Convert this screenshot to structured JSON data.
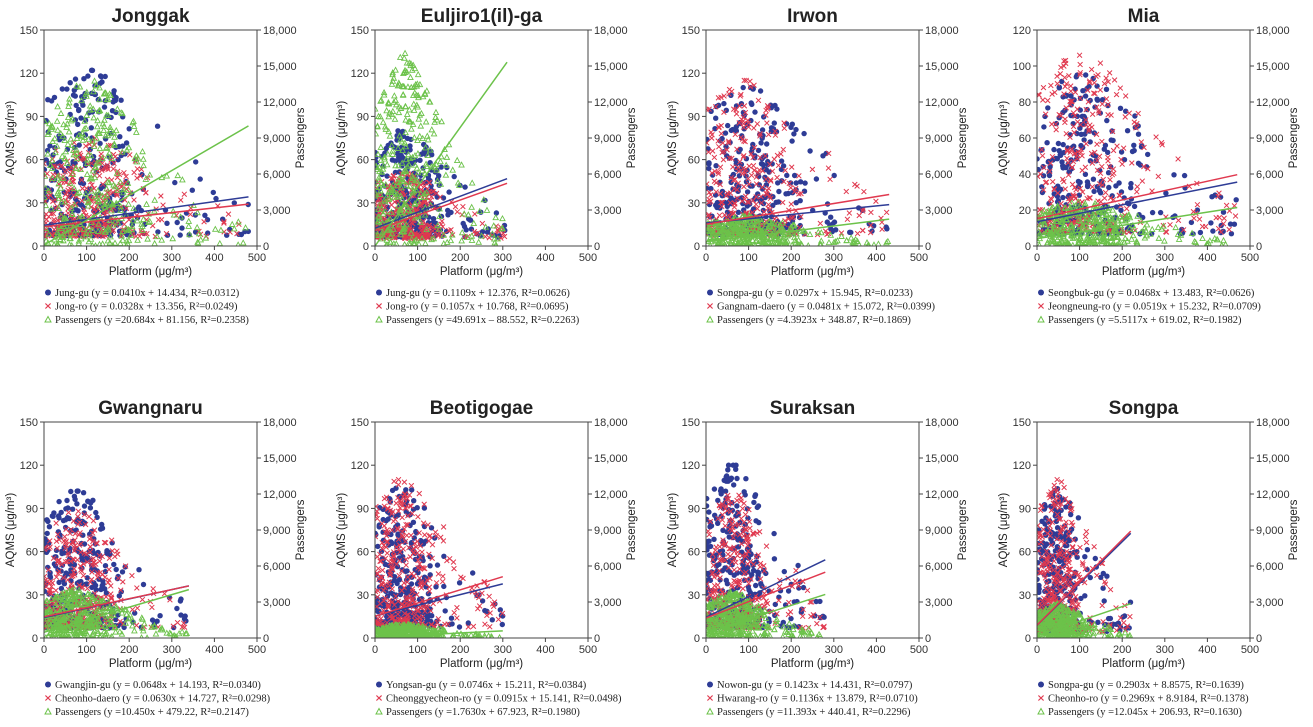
{
  "figure": {
    "left_axis_label": "AQMS (μg/m³)",
    "right_axis_label": "Passengers",
    "x_axis_label": "Platform (μg/m³)"
  },
  "colors": {
    "series1": "#2e3c96",
    "series2": "#e0394f",
    "series3": "#6cc24a"
  },
  "chart_data": [
    {
      "type": "scatter",
      "title": "Jonggak",
      "xlim": [
        0,
        500
      ],
      "ylim": [
        0,
        150
      ],
      "y2lim": [
        0,
        18000
      ],
      "xticks": [
        0,
        100,
        200,
        300,
        400,
        500
      ],
      "yticks": [
        0,
        30,
        60,
        90,
        120,
        150
      ],
      "y2ticks": [
        "0",
        "3,000",
        "6,000",
        "9,000",
        "12,000",
        "15,000",
        "18,000"
      ],
      "series": [
        {
          "name": "Jung-gu",
          "slope": 0.041,
          "intercept": 14.434,
          "legend": "Jung-gu (y = 0.0410x + 14.434, R²=0.0312)"
        },
        {
          "name": "Jong-ro",
          "slope": 0.0328,
          "intercept": 13.356,
          "legend": "Jong-ro (y = 0.0328x + 13.356, R²=0.0249)"
        },
        {
          "name": "Passengers",
          "slope": 20.684,
          "intercept": 81.156,
          "legend": "Passengers (y =20.684x + 81.156, R²=0.2358)"
        }
      ],
      "cloud": {
        "xmax": 480,
        "ymax1": 122,
        "ymax2": 75,
        "pmax": 14500
      }
    },
    {
      "type": "scatter",
      "title": "Euljiro1(il)-ga",
      "xlim": [
        0,
        500
      ],
      "ylim": [
        0,
        150
      ],
      "y2lim": [
        0,
        18000
      ],
      "xticks": [
        0,
        100,
        200,
        300,
        400,
        500
      ],
      "yticks": [
        0,
        30,
        60,
        90,
        120,
        150
      ],
      "y2ticks": [
        "0",
        "3,000",
        "6,000",
        "9,000",
        "12,000",
        "15,000",
        "18,000"
      ],
      "series": [
        {
          "name": "Jung-gu",
          "slope": 0.1109,
          "intercept": 12.376,
          "legend": "Jung-gu (y = 0.1109x + 12.376, R²=0.0626)"
        },
        {
          "name": "Jong-ro",
          "slope": 0.1057,
          "intercept": 10.768,
          "legend": "Jong-ro (y = 0.1057x + 10.768, R²=0.0695)"
        },
        {
          "name": "Passengers",
          "slope": 49.691,
          "intercept": -88.552,
          "legend": "Passengers (y =49.691x – 88.552, R²=0.2263)"
        }
      ],
      "cloud": {
        "xmax": 310,
        "ymax1": 80,
        "ymax2": 50,
        "pmax": 16500
      }
    },
    {
      "type": "scatter",
      "title": "Irwon",
      "xlim": [
        0,
        500
      ],
      "ylim": [
        0,
        150
      ],
      "y2lim": [
        0,
        18000
      ],
      "xticks": [
        0,
        100,
        200,
        300,
        400,
        500
      ],
      "yticks": [
        0,
        30,
        60,
        90,
        120,
        150
      ],
      "y2ticks": [
        "0",
        "3,000",
        "6,000",
        "9,000",
        "12,000",
        "15,000",
        "18,000"
      ],
      "series": [
        {
          "name": "Songpa-gu",
          "slope": 0.0297,
          "intercept": 15.945,
          "legend": "Songpa-gu (y = 0.0297x + 15.945, R²=0.0233)"
        },
        {
          "name": "Gangnam-daero",
          "slope": 0.0481,
          "intercept": 15.072,
          "legend": "Gangnam-daero (y = 0.0481x + 15.072, R²=0.0399)"
        },
        {
          "name": "Passengers",
          "slope": 4.3923,
          "intercept": 348.87,
          "legend": "Passengers (y =4.3923x + 348.87, R²=0.1869)"
        }
      ],
      "cloud": {
        "xmax": 430,
        "ymax1": 110,
        "ymax2": 115,
        "pmax": 2600
      }
    },
    {
      "type": "scatter",
      "title": "Mia",
      "xlim": [
        0,
        500
      ],
      "ylim": [
        0,
        120
      ],
      "y2lim": [
        0,
        18000
      ],
      "xticks": [
        0,
        100,
        200,
        300,
        400,
        500
      ],
      "yticks": [
        0,
        20,
        40,
        60,
        80,
        100,
        120
      ],
      "y2ticks": [
        "0",
        "3,000",
        "6,000",
        "9,000",
        "12,000",
        "15,000",
        "18,000"
      ],
      "series": [
        {
          "name": "Seongbuk-gu",
          "slope": 0.0468,
          "intercept": 13.483,
          "legend": "Seongbuk-gu (y = 0.0468x + 13.483, R²=0.0626)"
        },
        {
          "name": "Jeongneung-ro",
          "slope": 0.0519,
          "intercept": 15.232,
          "legend": "Jeongneung-ro (y = 0.0519x + 15.232, R²=0.0709)"
        },
        {
          "name": "Passengers",
          "slope": 5.5117,
          "intercept": 619.02,
          "legend": "Passengers (y =5.5117x + 619.02, R²=0.1982)"
        }
      ],
      "cloud": {
        "xmax": 470,
        "ymax1": 95,
        "ymax2": 106,
        "pmax": 3900
      }
    },
    {
      "type": "scatter",
      "title": "Gwangnaru",
      "xlim": [
        0,
        500
      ],
      "ylim": [
        0,
        150
      ],
      "y2lim": [
        0,
        18000
      ],
      "xticks": [
        0,
        100,
        200,
        300,
        400,
        500
      ],
      "yticks": [
        0,
        30,
        60,
        90,
        120,
        150
      ],
      "y2ticks": [
        "0",
        "3,000",
        "6,000",
        "9,000",
        "12,000",
        "15,000",
        "18,000"
      ],
      "series": [
        {
          "name": "Gwangjin-gu",
          "slope": 0.0648,
          "intercept": 14.193,
          "legend": "Gwangjin-gu (y = 0.0648x + 14.193, R²=0.0340)"
        },
        {
          "name": "Cheonho-daero",
          "slope": 0.063,
          "intercept": 14.727,
          "legend": "Cheonho-daero (y = 0.0630x + 14.727, R²=0.0298)"
        },
        {
          "name": "Passengers",
          "slope": 10.45,
          "intercept": 479.22,
          "legend": "Passengers (y =10.450x + 479.22, R²=0.2147)"
        }
      ],
      "cloud": {
        "xmax": 340,
        "ymax1": 102,
        "ymax2": 88,
        "pmax": 4200
      }
    },
    {
      "type": "scatter",
      "title": "Beotigogae",
      "xlim": [
        0,
        500
      ],
      "ylim": [
        0,
        150
      ],
      "y2lim": [
        0,
        18000
      ],
      "xticks": [
        0,
        100,
        200,
        300,
        400,
        500
      ],
      "yticks": [
        0,
        30,
        60,
        90,
        120,
        150
      ],
      "y2ticks": [
        "0",
        "3,000",
        "6,000",
        "9,000",
        "12,000",
        "15,000",
        "18,000"
      ],
      "series": [
        {
          "name": "Yongsan-gu",
          "slope": 0.0746,
          "intercept": 15.211,
          "legend": "Yongsan-gu (y = 0.0746x + 15.211, R²=0.0384)"
        },
        {
          "name": "Cheonggyecheon-ro",
          "slope": 0.0915,
          "intercept": 15.141,
          "legend": "Cheonggyecheon-ro (y = 0.0915x + 15.141, R²=0.0498)"
        },
        {
          "name": "Passengers",
          "slope": 1.763,
          "intercept": 67.923,
          "legend": "Passengers (y =1.7630x + 67.923, R²=0.1980)"
        }
      ],
      "cloud": {
        "xmax": 300,
        "ymax1": 105,
        "ymax2": 110,
        "pmax": 1200
      }
    },
    {
      "type": "scatter",
      "title": "Suraksan",
      "xlim": [
        0,
        500
      ],
      "ylim": [
        0,
        150
      ],
      "y2lim": [
        0,
        18000
      ],
      "xticks": [
        0,
        100,
        200,
        300,
        400,
        500
      ],
      "yticks": [
        0,
        30,
        60,
        90,
        120,
        150
      ],
      "y2ticks": [
        "0",
        "3,000",
        "6,000",
        "9,000",
        "12,000",
        "15,000",
        "18,000"
      ],
      "series": [
        {
          "name": "Nowon-gu",
          "slope": 0.1423,
          "intercept": 14.431,
          "legend": "Nowon-gu (y = 0.1423x + 14.431, R²=0.0797)"
        },
        {
          "name": "Hwarang-ro",
          "slope": 0.1136,
          "intercept": 13.879,
          "legend": "Hwarang-ro (y = 0.1136x + 13.879, R²=0.0710)"
        },
        {
          "name": "Passengers",
          "slope": 11.393,
          "intercept": 440.41,
          "legend": "Passengers (y =11.393x + 440.41, R²=0.2296)"
        }
      ],
      "cloud": {
        "xmax": 280,
        "ymax1": 120,
        "ymax2": 100,
        "pmax": 4000
      }
    },
    {
      "type": "scatter",
      "title": "Songpa",
      "xlim": [
        0,
        500
      ],
      "ylim": [
        0,
        150
      ],
      "y2lim": [
        0,
        18000
      ],
      "xticks": [
        0,
        100,
        200,
        300,
        400,
        500
      ],
      "yticks": [
        0,
        30,
        60,
        90,
        120,
        150
      ],
      "y2ticks": [
        "0",
        "3,000",
        "6,000",
        "9,000",
        "12,000",
        "15,000",
        "18,000"
      ],
      "series": [
        {
          "name": "Songpa-gu",
          "slope": 0.2903,
          "intercept": 8.8575,
          "legend": "Songpa-gu (y = 0.2903x + 8.8575, R²=0.1639)"
        },
        {
          "name": "Cheonho-ro",
          "slope": 0.2969,
          "intercept": 8.9184,
          "legend": "Cheonho-ro (y = 0.2969x + 8.9184, R²=0.1378)"
        },
        {
          "name": "Passengers",
          "slope": 12.045,
          "intercept": 206.93,
          "legend": "Passengers (y =12.045x + 206.93, R²=0.1630)"
        }
      ],
      "cloud": {
        "xmax": 220,
        "ymax1": 105,
        "ymax2": 110,
        "pmax": 2900
      }
    }
  ]
}
